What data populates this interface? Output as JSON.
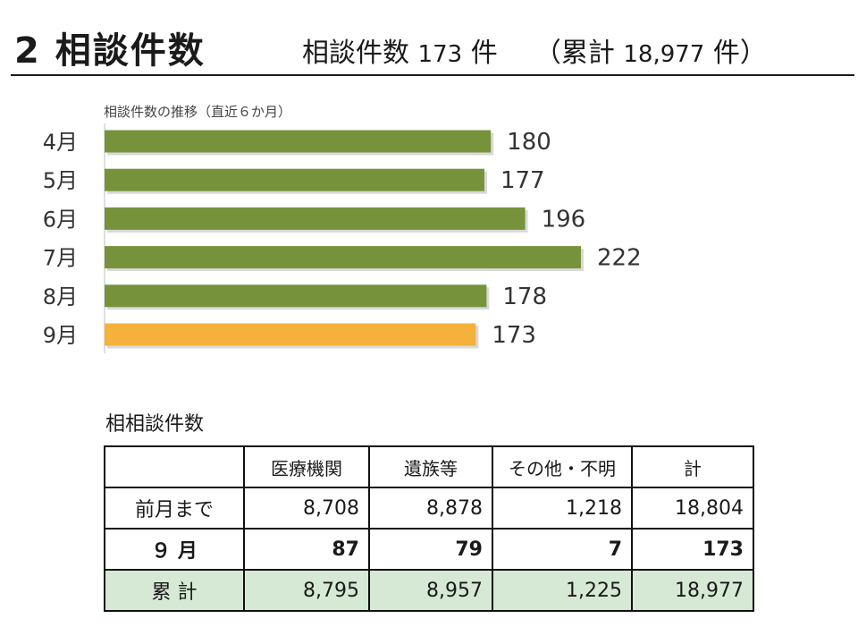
{
  "header": {
    "title": "2 相談件数",
    "subtitle_label": "相談件数",
    "subtitle_count": "173",
    "subtitle_unit": "件",
    "cumulative_label": "（累計",
    "cumulative_count": "18,977",
    "cumulative_unit": "件）"
  },
  "chart_data": {
    "type": "bar",
    "orientation": "horizontal",
    "title": "相談件数の推移（直近６か月）",
    "categories": [
      "4月",
      "5月",
      "6月",
      "7月",
      "8月",
      "9月"
    ],
    "values": [
      180,
      177,
      196,
      222,
      178,
      173
    ],
    "value_labels": [
      "180",
      "177",
      "196",
      "222",
      "178",
      "173"
    ],
    "colors": [
      "#76933c",
      "#76933c",
      "#76933c",
      "#76933c",
      "#76933c",
      "#f4b23c"
    ],
    "grid": false,
    "legend": "none"
  },
  "table": {
    "caption": "相相談件数",
    "columns": [
      "",
      "医療機関",
      "遺族等",
      "その他・不明",
      "計"
    ],
    "rows": [
      {
        "label": "前月まで",
        "values": [
          "8,708",
          "8,878",
          "1,218",
          "18,804"
        ]
      },
      {
        "label": "９ 月",
        "values": [
          "87",
          "79",
          "7",
          "173"
        ]
      },
      {
        "label": "累 計",
        "values": [
          "8,795",
          "8,957",
          "1,225",
          "18,977"
        ]
      }
    ]
  }
}
